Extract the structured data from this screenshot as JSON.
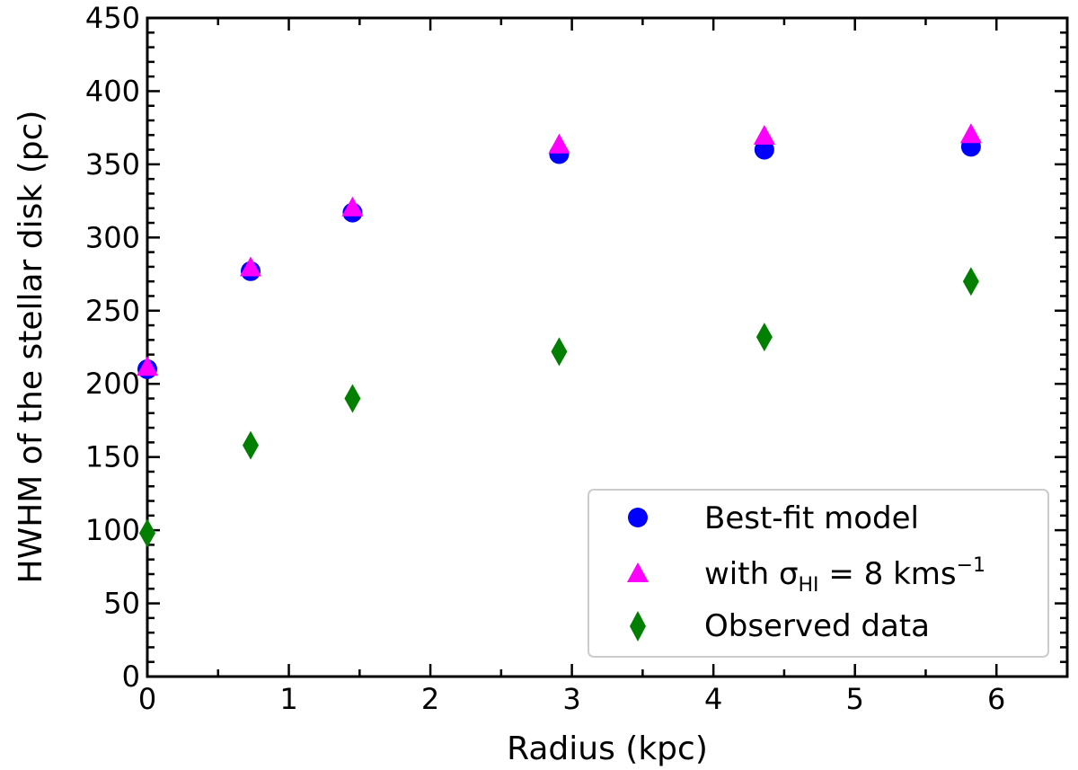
{
  "chart_data": {
    "type": "scatter",
    "xlabel": "Radius (kpc)",
    "ylabel": "HWHM of the stellar disk (pc)",
    "xlim": [
      0,
      6.5
    ],
    "ylim": [
      0,
      450
    ],
    "xticks": [
      "0",
      "1",
      "2",
      "3",
      "4",
      "5",
      "6"
    ],
    "yticks": [
      "0",
      "50",
      "100",
      "150",
      "200",
      "250",
      "300",
      "350",
      "400",
      "450"
    ],
    "grid": false,
    "legend_position": "lower-right",
    "series": [
      {
        "name": "Best-fit model",
        "marker": "circle",
        "color": "#0000ff",
        "x": [
          0,
          0.73,
          1.45,
          2.91,
          4.36,
          5.82
        ],
        "y": [
          210,
          277,
          317,
          357,
          360,
          362
        ]
      },
      {
        "name": "with σ_HI = 8 kms^-1",
        "marker": "triangle",
        "color": "#ff00ff",
        "x": [
          0,
          0.73,
          1.45,
          2.91,
          4.36,
          5.82
        ],
        "y": [
          211,
          279,
          320,
          363,
          369,
          370
        ]
      },
      {
        "name": "Observed data",
        "marker": "diamond",
        "color": "#007f00",
        "x": [
          0,
          0.73,
          1.45,
          2.91,
          4.36,
          5.82
        ],
        "y": [
          98,
          158,
          190,
          222,
          232,
          270
        ]
      }
    ]
  },
  "legend": {
    "best_fit": "Best-fit model",
    "sigma_prefix": "with σ",
    "sigma_sub": "HI",
    "sigma_mid": " = 8 kms",
    "sigma_sup": "−1",
    "observed": "Observed data"
  }
}
